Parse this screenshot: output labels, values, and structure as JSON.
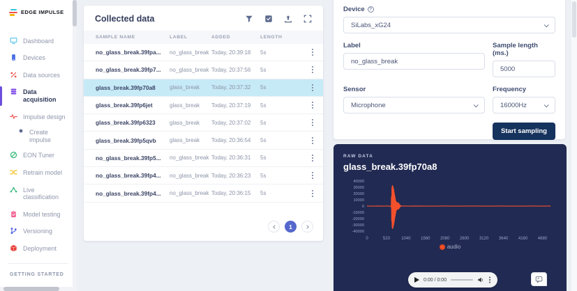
{
  "app": {
    "logo_text": "EDGE IMPULSE"
  },
  "colors": {
    "accent_blue": "#5568cb",
    "active_purple": "#6c4ddc",
    "selected_row": "#c7eaf7",
    "dark_panel": "#212a52",
    "primary_button": "#16335d",
    "waveform": "#f4502c"
  },
  "sidebar": {
    "items": [
      {
        "label": "Dashboard",
        "icon": "dashboard-icon"
      },
      {
        "label": "Devices",
        "icon": "devices-icon"
      },
      {
        "label": "Data sources",
        "icon": "data-sources-icon"
      },
      {
        "label": "Data acquisition",
        "icon": "data-acquisition-icon",
        "active": true
      },
      {
        "label": "Impulse design",
        "icon": "impulse-design-icon"
      },
      {
        "label": "Create impulse",
        "icon": "create-impulse-bullet-icon",
        "sub": true
      },
      {
        "label": "EON Tuner",
        "icon": "eon-tuner-icon"
      },
      {
        "label": "Retrain model",
        "icon": "retrain-model-icon"
      },
      {
        "label": "Live classification",
        "icon": "live-classification-icon"
      },
      {
        "label": "Model testing",
        "icon": "model-testing-icon"
      },
      {
        "label": "Versioning",
        "icon": "versioning-icon"
      },
      {
        "label": "Deployment",
        "icon": "deployment-icon"
      }
    ],
    "section_header": "GETTING STARTED"
  },
  "collected_data": {
    "title": "Collected data",
    "toolbar_icons": [
      "filter-icon",
      "select-mode-icon",
      "upload-icon",
      "expand-icon"
    ],
    "columns": [
      "Sample name",
      "Label",
      "Added",
      "Length"
    ],
    "rows": [
      {
        "name": "no_glass_break.39fpa...",
        "label": "no_glass_break",
        "added": "Today, 20:39:18",
        "length": "5s",
        "selected": false
      },
      {
        "name": "no_glass_break.39fp7...",
        "label": "no_glass_break",
        "added": "Today, 20:37:56",
        "length": "5s",
        "selected": false
      },
      {
        "name": "glass_break.39fp70a8",
        "label": "glass_break",
        "added": "Today, 20:37:32",
        "length": "5s",
        "selected": true
      },
      {
        "name": "glass_break.39fp6jet",
        "label": "glass_break",
        "added": "Today, 20:37:19",
        "length": "5s",
        "selected": false
      },
      {
        "name": "glass_break.39fp6323",
        "label": "glass_break",
        "added": "Today, 20:37:02",
        "length": "5s",
        "selected": false
      },
      {
        "name": "glass_break.39fp5qvb",
        "label": "glass_break",
        "added": "Today, 20:36:54",
        "length": "5s",
        "selected": false
      },
      {
        "name": "no_glass_break.39fp5...",
        "label": "no_glass_break",
        "added": "Today, 20:36:31",
        "length": "5s",
        "selected": false
      },
      {
        "name": "no_glass_break.39fp4...",
        "label": "no_glass_break",
        "added": "Today, 20:36:23",
        "length": "5s",
        "selected": false
      },
      {
        "name": "no_glass_break.39fp4...",
        "label": "no_glass_break",
        "added": "Today, 20:36:15",
        "length": "5s",
        "selected": false
      }
    ],
    "pagination": {
      "current_page": "1"
    }
  },
  "form": {
    "device_label": "Device",
    "device_value": "SiLabs_xG24",
    "label_label": "Label",
    "label_value": "no_glass_break",
    "sample_length_label": "Sample length (ms.)",
    "sample_length_value": "5000",
    "sensor_label": "Sensor",
    "sensor_value": "Microphone",
    "frequency_label": "Frequency",
    "frequency_value": "16000Hz",
    "start_button": "Start sampling"
  },
  "raw_data": {
    "eyebrow": "RAW DATA",
    "title": "glass_break.39fp70a8",
    "legend_label": "audio",
    "player_time": "0:00 / 0:00"
  },
  "chart_data": {
    "type": "line",
    "title": "glass_break.39fp70a8 raw audio waveform",
    "xlabel": "",
    "ylabel": "",
    "xlim": [
      0,
      4950
    ],
    "ylim": [
      -40000,
      40000
    ],
    "x_ticks": [
      0,
      520,
      1040,
      1560,
      2080,
      2600,
      3120,
      3640,
      4160,
      4680
    ],
    "y_ticks": [
      40000,
      30000,
      20000,
      10000,
      0,
      -10000,
      -20000,
      -30000,
      -40000
    ],
    "grid": false,
    "legend_position": "bottom",
    "legend": [
      "audio"
    ],
    "series": [
      {
        "name": "audio",
        "color": "#f4502c",
        "points": [
          [
            0,
            120
          ],
          [
            150,
            -120
          ],
          [
            300,
            120
          ],
          [
            450,
            -150
          ],
          [
            550,
            200
          ],
          [
            600,
            -300
          ],
          [
            630,
            500
          ],
          [
            645,
            -2000
          ],
          [
            652,
            15000
          ],
          [
            658,
            -24000
          ],
          [
            664,
            30000
          ],
          [
            670,
            -34000
          ],
          [
            676,
            33000
          ],
          [
            682,
            -36000
          ],
          [
            688,
            32000
          ],
          [
            694,
            -35000
          ],
          [
            700,
            30000
          ],
          [
            706,
            -32000
          ],
          [
            712,
            27000
          ],
          [
            718,
            -29000
          ],
          [
            724,
            23000
          ],
          [
            730,
            -25000
          ],
          [
            736,
            19000
          ],
          [
            742,
            -20000
          ],
          [
            748,
            15000
          ],
          [
            754,
            -16000
          ],
          [
            760,
            11000
          ],
          [
            766,
            -12000
          ],
          [
            772,
            8000
          ],
          [
            778,
            -8500
          ],
          [
            784,
            6200
          ],
          [
            790,
            -6000
          ],
          [
            796,
            5600
          ],
          [
            804,
            -5300
          ],
          [
            812,
            5500
          ],
          [
            820,
            -5100
          ],
          [
            828,
            5300
          ],
          [
            836,
            -4900
          ],
          [
            844,
            4600
          ],
          [
            852,
            -4200
          ],
          [
            860,
            3400
          ],
          [
            868,
            -2700
          ],
          [
            876,
            2000
          ],
          [
            884,
            -1400
          ],
          [
            892,
            900
          ],
          [
            900,
            -600
          ],
          [
            920,
            400
          ],
          [
            950,
            -250
          ],
          [
            1000,
            200
          ],
          [
            1100,
            -160
          ],
          [
            1300,
            140
          ],
          [
            1600,
            -120
          ],
          [
            2000,
            120
          ],
          [
            2400,
            -110
          ],
          [
            2800,
            110
          ],
          [
            3200,
            -110
          ],
          [
            3600,
            110
          ],
          [
            4000,
            -110
          ],
          [
            4400,
            110
          ],
          [
            4700,
            -100
          ],
          [
            4900,
            90
          ]
        ]
      }
    ]
  }
}
